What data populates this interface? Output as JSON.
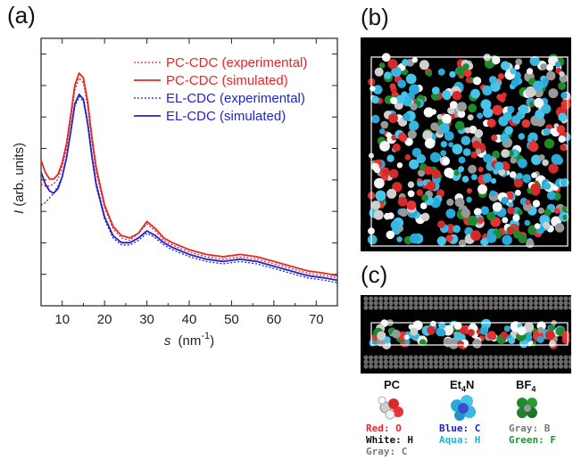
{
  "panels": {
    "a": "(a)",
    "b": "(b)",
    "c": "(c)"
  },
  "chart_data": {
    "type": "line",
    "xlabel_italic": "s",
    "xlabel_unit": "(nm",
    "xlabel_sup": "-1",
    "xlabel_close": ")",
    "ylabel_italic": "I",
    "ylabel_rest": " (arb. units)",
    "xlim": [
      5,
      75
    ],
    "xticks": [
      10,
      20,
      30,
      40,
      50,
      60,
      70
    ],
    "ylim": [
      0,
      1
    ],
    "legend_position": "top-right",
    "colors": {
      "pc": "#e8262a",
      "el": "#2222cc"
    },
    "series": [
      {
        "name": "PC-CDC (experimental)",
        "color": "#e8262a",
        "style": "dotted",
        "x": [
          5,
          6,
          7,
          8,
          9,
          10,
          11,
          12,
          13,
          14,
          15,
          16,
          17,
          18,
          20,
          22,
          24,
          26,
          28,
          30,
          32,
          34,
          36,
          40,
          44,
          48,
          52,
          56,
          60,
          64,
          68,
          72,
          75
        ],
        "y": [
          0.45,
          0.44,
          0.44,
          0.45,
          0.47,
          0.52,
          0.6,
          0.72,
          0.85,
          0.9,
          0.88,
          0.78,
          0.63,
          0.5,
          0.35,
          0.26,
          0.22,
          0.21,
          0.24,
          0.28,
          0.25,
          0.21,
          0.19,
          0.16,
          0.14,
          0.13,
          0.14,
          0.13,
          0.11,
          0.09,
          0.07,
          0.06,
          0.05
        ]
      },
      {
        "name": "PC-CDC (simulated)",
        "color": "#e8262a",
        "style": "solid",
        "x": [
          5,
          6,
          7,
          8,
          9,
          10,
          11,
          12,
          13,
          14,
          15,
          16,
          17,
          18,
          20,
          22,
          24,
          26,
          28,
          30,
          32,
          34,
          36,
          40,
          44,
          48,
          52,
          56,
          60,
          64,
          68,
          72,
          75
        ],
        "y": [
          0.55,
          0.5,
          0.47,
          0.47,
          0.49,
          0.54,
          0.62,
          0.74,
          0.87,
          0.92,
          0.9,
          0.8,
          0.65,
          0.52,
          0.36,
          0.27,
          0.23,
          0.22,
          0.24,
          0.29,
          0.26,
          0.22,
          0.2,
          0.17,
          0.15,
          0.14,
          0.15,
          0.14,
          0.12,
          0.1,
          0.08,
          0.07,
          0.06
        ]
      },
      {
        "name": "EL-CDC (experimental)",
        "color": "#2222cc",
        "style": "dotted",
        "x": [
          5,
          6,
          7,
          8,
          9,
          10,
          11,
          12,
          13,
          14,
          15,
          16,
          17,
          18,
          20,
          22,
          24,
          26,
          28,
          30,
          32,
          34,
          36,
          40,
          44,
          48,
          52,
          56,
          60,
          64,
          68,
          72,
          75
        ],
        "y": [
          0.36,
          0.37,
          0.39,
          0.41,
          0.44,
          0.48,
          0.56,
          0.67,
          0.78,
          0.82,
          0.8,
          0.7,
          0.56,
          0.44,
          0.3,
          0.22,
          0.19,
          0.19,
          0.21,
          0.24,
          0.22,
          0.19,
          0.17,
          0.14,
          0.12,
          0.11,
          0.12,
          0.11,
          0.09,
          0.07,
          0.05,
          0.04,
          0.03
        ]
      },
      {
        "name": "EL-CDC (simulated)",
        "color": "#2222cc",
        "style": "solid",
        "x": [
          5,
          6,
          7,
          8,
          9,
          10,
          11,
          12,
          13,
          14,
          15,
          16,
          17,
          18,
          20,
          22,
          24,
          26,
          28,
          30,
          32,
          34,
          36,
          40,
          44,
          48,
          52,
          56,
          60,
          64,
          68,
          72,
          75
        ],
        "y": [
          0.5,
          0.45,
          0.42,
          0.41,
          0.43,
          0.48,
          0.56,
          0.67,
          0.79,
          0.83,
          0.81,
          0.71,
          0.57,
          0.45,
          0.31,
          0.23,
          0.2,
          0.2,
          0.22,
          0.25,
          0.23,
          0.2,
          0.18,
          0.15,
          0.13,
          0.12,
          0.13,
          0.12,
          0.1,
          0.08,
          0.06,
          0.05,
          0.04
        ]
      }
    ]
  },
  "key": {
    "pc": {
      "title": "PC",
      "lines": [
        {
          "label": "Red",
          "sep": ": ",
          "atom": "O",
          "color": "#e8262a"
        },
        {
          "label": "White",
          "sep": ": ",
          "atom": "H",
          "color": "#111111"
        },
        {
          "label": "Gray",
          "sep": ": ",
          "atom": "C",
          "color": "#777777"
        }
      ]
    },
    "et4n": {
      "title_main": "Et",
      "title_sub": "4",
      "title_end": "N",
      "lines": [
        {
          "label": "Blue",
          "sep": ": ",
          "atom": "C",
          "color": "#1a1ad0"
        },
        {
          "label": "Aqua",
          "sep": ": ",
          "atom": "H",
          "color": "#1fb5e0"
        }
      ]
    },
    "bf4": {
      "title_main": "BF",
      "title_sub": "4",
      "lines": [
        {
          "label": "Gray",
          "sep": ": ",
          "atom": "B",
          "color": "#777777"
        },
        {
          "label": "Green",
          "sep": ": ",
          "atom": "F",
          "color": "#1a9a2a"
        }
      ]
    }
  }
}
